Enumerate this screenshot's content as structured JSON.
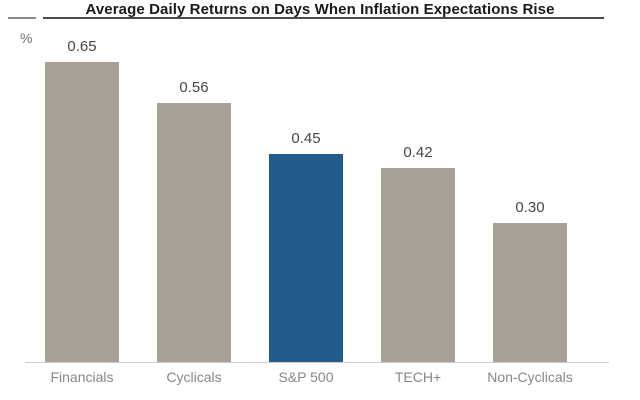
{
  "chart_data": {
    "type": "bar",
    "title": "Average Daily Returns on Days When Inflation Expectations Rise",
    "unit_label": "%",
    "categories": [
      "Financials",
      "Cyclicals",
      "S&P 500",
      "TECH+",
      "Non-Cyclicals"
    ],
    "values": [
      0.65,
      0.56,
      0.45,
      0.42,
      0.3
    ],
    "value_labels": [
      "0.65",
      "0.56",
      "0.45",
      "0.42",
      "0.30"
    ],
    "highlight_index": 2,
    "highlighted_category": "S&P 500",
    "ylim": [
      0,
      0.7
    ],
    "grid": false,
    "legend": false,
    "xlabel": "",
    "ylabel": "%",
    "colors": {
      "bar_default": "#A8A19A",
      "bar_highlight": "#235C8C",
      "title_text": "#1A1A1A",
      "value_label": "#474747",
      "category_label": "#878787",
      "baseline": "#CCCCCC",
      "title_rule": "#4A4A4A"
    }
  }
}
